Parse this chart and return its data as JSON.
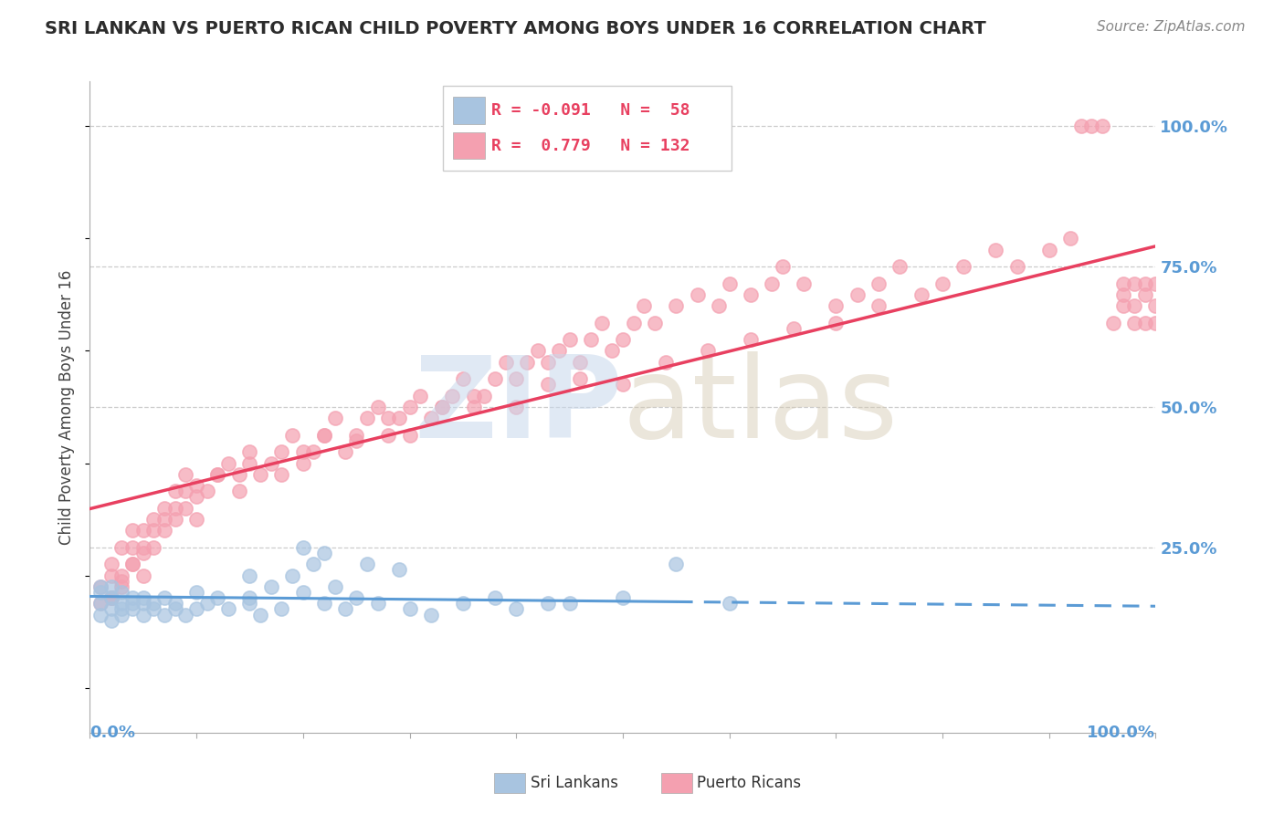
{
  "title": "SRI LANKAN VS PUERTO RICAN CHILD POVERTY AMONG BOYS UNDER 16 CORRELATION CHART",
  "source": "Source: ZipAtlas.com",
  "ylabel": "Child Poverty Among Boys Under 16",
  "r_sri": -0.091,
  "n_sri": 58,
  "r_puerto": 0.779,
  "n_puerto": 132,
  "sri_color": "#a8c4e0",
  "puerto_color": "#f4a0b0",
  "sri_line_color": "#5b9bd5",
  "puerto_line_color": "#e84060",
  "watermark_zip_color": "#c8d8ec",
  "watermark_atlas_color": "#d4c8b0",
  "background_color": "#ffffff",
  "title_color": "#2c2c2c",
  "source_color": "#888888",
  "legend_text_color": "#2c2c2c",
  "legend_val_color": "#e84060",
  "legend_n_color": "#5b9bd5",
  "right_tick_color": "#5b9bd5",
  "sri_scatter_x": [
    0.01,
    0.01,
    0.01,
    0.01,
    0.02,
    0.02,
    0.02,
    0.02,
    0.03,
    0.03,
    0.03,
    0.03,
    0.04,
    0.04,
    0.04,
    0.05,
    0.05,
    0.05,
    0.06,
    0.06,
    0.07,
    0.07,
    0.08,
    0.08,
    0.09,
    0.1,
    0.1,
    0.11,
    0.12,
    0.13,
    0.15,
    0.15,
    0.16,
    0.18,
    0.2,
    0.22,
    0.24,
    0.25,
    0.27,
    0.3,
    0.32,
    0.35,
    0.38,
    0.4,
    0.43,
    0.2,
    0.22,
    0.45,
    0.5,
    0.55,
    0.6,
    0.15,
    0.17,
    0.19,
    0.21,
    0.23,
    0.26,
    0.29
  ],
  "sri_scatter_y": [
    0.18,
    0.15,
    0.17,
    0.13,
    0.14,
    0.16,
    0.12,
    0.18,
    0.17,
    0.14,
    0.15,
    0.13,
    0.15,
    0.16,
    0.14,
    0.15,
    0.13,
    0.16,
    0.14,
    0.15,
    0.13,
    0.16,
    0.14,
    0.15,
    0.13,
    0.17,
    0.14,
    0.15,
    0.16,
    0.14,
    0.15,
    0.16,
    0.13,
    0.14,
    0.17,
    0.15,
    0.14,
    0.16,
    0.15,
    0.14,
    0.13,
    0.15,
    0.16,
    0.14,
    0.15,
    0.25,
    0.24,
    0.15,
    0.16,
    0.22,
    0.15,
    0.2,
    0.18,
    0.2,
    0.22,
    0.18,
    0.22,
    0.21
  ],
  "puerto_scatter_x": [
    0.01,
    0.01,
    0.02,
    0.02,
    0.02,
    0.03,
    0.03,
    0.03,
    0.04,
    0.04,
    0.04,
    0.05,
    0.05,
    0.05,
    0.06,
    0.06,
    0.07,
    0.07,
    0.08,
    0.08,
    0.09,
    0.09,
    0.1,
    0.1,
    0.11,
    0.12,
    0.13,
    0.14,
    0.15,
    0.16,
    0.17,
    0.18,
    0.19,
    0.2,
    0.21,
    0.22,
    0.23,
    0.24,
    0.25,
    0.26,
    0.27,
    0.28,
    0.29,
    0.3,
    0.31,
    0.32,
    0.33,
    0.34,
    0.35,
    0.36,
    0.37,
    0.38,
    0.39,
    0.4,
    0.41,
    0.42,
    0.43,
    0.44,
    0.45,
    0.46,
    0.47,
    0.48,
    0.49,
    0.5,
    0.51,
    0.52,
    0.53,
    0.55,
    0.57,
    0.59,
    0.6,
    0.62,
    0.64,
    0.65,
    0.67,
    0.7,
    0.72,
    0.74,
    0.76,
    0.78,
    0.8,
    0.82,
    0.85,
    0.87,
    0.9,
    0.92,
    0.93,
    0.94,
    0.95,
    0.96,
    0.97,
    0.97,
    0.97,
    0.98,
    0.98,
    0.98,
    0.99,
    0.99,
    0.99,
    1.0,
    1.0,
    1.0,
    0.02,
    0.03,
    0.04,
    0.05,
    0.06,
    0.07,
    0.08,
    0.09,
    0.1,
    0.12,
    0.14,
    0.15,
    0.18,
    0.2,
    0.22,
    0.25,
    0.28,
    0.3,
    0.33,
    0.36,
    0.4,
    0.43,
    0.46,
    0.5,
    0.54,
    0.58,
    0.62,
    0.66,
    0.7,
    0.74
  ],
  "puerto_scatter_y": [
    0.15,
    0.18,
    0.16,
    0.2,
    0.22,
    0.18,
    0.2,
    0.25,
    0.22,
    0.25,
    0.28,
    0.2,
    0.24,
    0.28,
    0.25,
    0.3,
    0.28,
    0.32,
    0.3,
    0.35,
    0.32,
    0.38,
    0.3,
    0.36,
    0.35,
    0.38,
    0.4,
    0.38,
    0.42,
    0.38,
    0.4,
    0.42,
    0.45,
    0.4,
    0.42,
    0.45,
    0.48,
    0.42,
    0.45,
    0.48,
    0.5,
    0.45,
    0.48,
    0.5,
    0.52,
    0.48,
    0.5,
    0.52,
    0.55,
    0.5,
    0.52,
    0.55,
    0.58,
    0.55,
    0.58,
    0.6,
    0.58,
    0.6,
    0.62,
    0.58,
    0.62,
    0.65,
    0.6,
    0.62,
    0.65,
    0.68,
    0.65,
    0.68,
    0.7,
    0.68,
    0.72,
    0.7,
    0.72,
    0.75,
    0.72,
    0.68,
    0.7,
    0.72,
    0.75,
    0.7,
    0.72,
    0.75,
    0.78,
    0.75,
    0.78,
    0.8,
    1.0,
    1.0,
    1.0,
    0.65,
    0.68,
    0.7,
    0.72,
    0.65,
    0.68,
    0.72,
    0.65,
    0.7,
    0.72,
    0.65,
    0.68,
    0.72,
    0.16,
    0.19,
    0.22,
    0.25,
    0.28,
    0.3,
    0.32,
    0.35,
    0.34,
    0.38,
    0.35,
    0.4,
    0.38,
    0.42,
    0.45,
    0.44,
    0.48,
    0.45,
    0.5,
    0.52,
    0.5,
    0.54,
    0.55,
    0.54,
    0.58,
    0.6,
    0.62,
    0.64,
    0.65,
    0.68
  ]
}
